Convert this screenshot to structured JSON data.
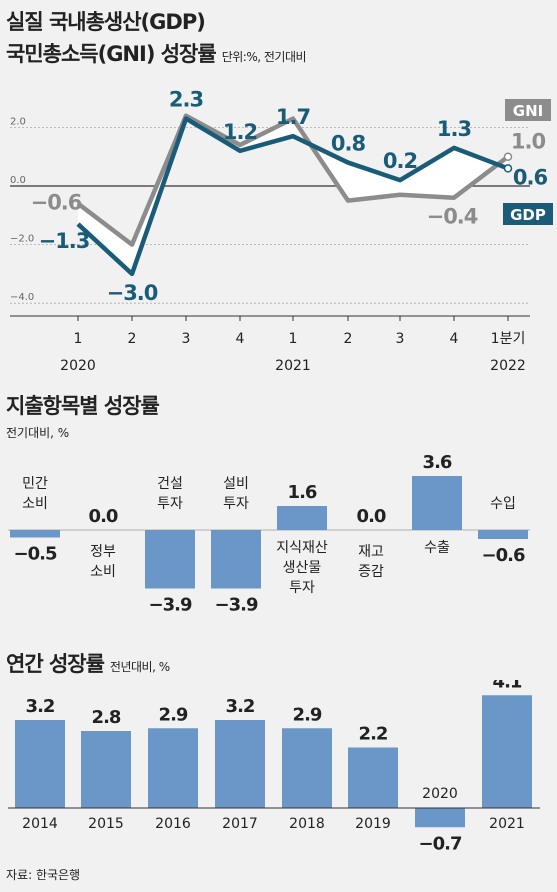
{
  "chart1": {
    "title_line1": "실질 국내총생산(GDP)",
    "title_line2": "국민총소득(GNI) 성장률",
    "unit": "단위:%, 전기대비",
    "y_ticks": [
      "2.0",
      "0.0",
      "-2.0",
      "-4.0"
    ],
    "x_quarters": [
      "1",
      "2",
      "3",
      "4",
      "1",
      "2",
      "3",
      "4",
      "1분기"
    ],
    "x_years": [
      "2020",
      "2021",
      "2022"
    ]
  },
  "chart2": {
    "title": "지출항목별 성장률",
    "unit": "전기대비, %"
  },
  "chart3": {
    "title": "연간 성장률",
    "unit": "전년대비, %"
  },
  "source": "자료: 한국은행",
  "colors": {
    "gdp": "#1a5c78",
    "gni": "#8c8c8c",
    "bar": "#6b96c8"
  },
  "chart_data": [
    {
      "type": "line",
      "x": [
        "2020 1",
        "2020 2",
        "2020 3",
        "2020 4",
        "2021 1",
        "2021 2",
        "2021 3",
        "2021 4",
        "2022 1분기"
      ],
      "ylim": [
        -4,
        2.6
      ],
      "grid": true,
      "series": [
        {
          "name": "GDP",
          "values": [
            -1.3,
            -3.0,
            2.3,
            1.2,
            1.7,
            0.8,
            0.2,
            1.3,
            0.6
          ],
          "labels": [
            "-1.3",
            "-3.0",
            "2.3",
            "1.2",
            "1.7",
            "0.8",
            "0.2",
            "1.3",
            "0.6"
          ]
        },
        {
          "name": "GNI",
          "values": [
            -0.6,
            -2.0,
            2.4,
            1.4,
            2.3,
            -0.5,
            -0.3,
            -0.4,
            1.0
          ],
          "labels": [
            "-0.6",
            "",
            "",
            "",
            "",
            "",
            "",
            "-0.4",
            "1.0"
          ]
        }
      ]
    },
    {
      "type": "bar",
      "categories": [
        "민간\n소비",
        "정부\n소비",
        "건설\n투자",
        "설비\n투자",
        "지식재산\n생산물\n투자",
        "재고\n증감",
        "수출",
        "수입"
      ],
      "values": [
        -0.5,
        0.0,
        -3.9,
        -3.9,
        1.6,
        0.0,
        3.6,
        -0.6
      ],
      "labels": [
        "-0.5",
        "0.0",
        "-3.9",
        "-3.9",
        "1.6",
        "0.0",
        "3.6",
        "-0.6"
      ]
    },
    {
      "type": "bar",
      "categories": [
        "2014",
        "2015",
        "2016",
        "2017",
        "2018",
        "2019",
        "2020",
        "2021"
      ],
      "values": [
        3.2,
        2.8,
        2.9,
        3.2,
        2.9,
        2.2,
        -0.7,
        4.1
      ],
      "labels": [
        "3.2",
        "2.8",
        "2.9",
        "3.2",
        "2.9",
        "2.2",
        "-0.7",
        "4.1"
      ]
    }
  ]
}
